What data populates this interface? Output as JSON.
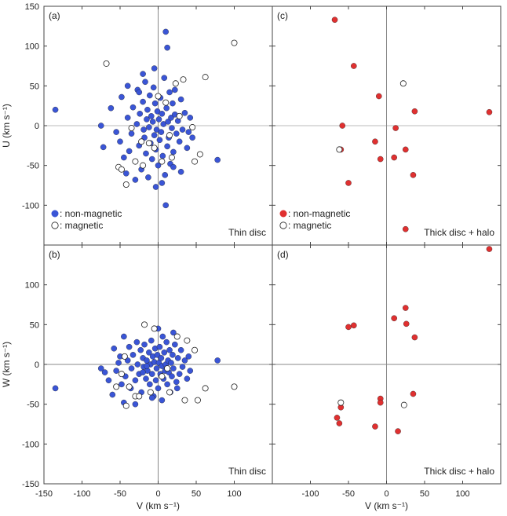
{
  "colors": {
    "non_magnetic_thin": "#3a55d6",
    "non_magnetic_thick": "#e03030",
    "magnetic_fill": "#ffffff",
    "marker_edge": "#222222",
    "zero_line": "#bbbbbb",
    "frame": "#444444"
  },
  "chart_data": [
    {
      "type": "scatter",
      "panel": "a",
      "panel_label": "(a)",
      "caption": "Thin disc",
      "xlabel": "",
      "ylabel": "U (km s⁻¹)",
      "xlim": [
        -150,
        150
      ],
      "ylim": [
        -150,
        150
      ],
      "x_ticks": [],
      "y_ticks": [
        "150",
        "100",
        "50",
        "0",
        "-50",
        "-100"
      ],
      "legend": {
        "position": "bottom-left",
        "entries": [
          ": non-magnetic",
          ": magnetic"
        ]
      },
      "series": [
        {
          "name": "non-magnetic",
          "marker": "filled",
          "color": "#3a55d6",
          "points": [
            [
              -135,
              20
            ],
            [
              -75,
              0
            ],
            [
              -72,
              -27
            ],
            [
              -62,
              22
            ],
            [
              -55,
              -8
            ],
            [
              -50,
              -20
            ],
            [
              -48,
              36
            ],
            [
              -45,
              -40
            ],
            [
              -42,
              -60
            ],
            [
              -40,
              10
            ],
            [
              -38,
              -32
            ],
            [
              -35,
              -10
            ],
            [
              -33,
              23
            ],
            [
              -30,
              -45
            ],
            [
              -28,
              2
            ],
            [
              -27,
              45
            ],
            [
              -25,
              -25
            ],
            [
              -24,
              15
            ],
            [
              -22,
              -55
            ],
            [
              -20,
              30
            ],
            [
              -19,
              -5
            ],
            [
              -18,
              -15
            ],
            [
              -17,
              55
            ],
            [
              -16,
              -35
            ],
            [
              -15,
              8
            ],
            [
              -14,
              20
            ],
            [
              -13,
              -65
            ],
            [
              -12,
              -2
            ],
            [
              -11,
              38
            ],
            [
              -10,
              -22
            ],
            [
              -9,
              12
            ],
            [
              -8,
              -42
            ],
            [
              -7,
              5
            ],
            [
              -6,
              48
            ],
            [
              -5,
              -12
            ],
            [
              -4,
              28
            ],
            [
              -3,
              -30
            ],
            [
              -2,
              -5
            ],
            [
              -1,
              18
            ],
            [
              0,
              -50
            ],
            [
              1,
              8
            ],
            [
              2,
              -18
            ],
            [
              3,
              35
            ],
            [
              4,
              -8
            ],
            [
              5,
              15
            ],
            [
              6,
              -38
            ],
            [
              7,
              2
            ],
            [
              8,
              60
            ],
            [
              9,
              -62
            ],
            [
              10,
              -100
            ],
            [
              10,
              118
            ],
            [
              11,
              22
            ],
            [
              12,
              -26
            ],
            [
              13,
              5
            ],
            [
              14,
              -15
            ],
            [
              15,
              42
            ],
            [
              16,
              -48
            ],
            [
              17,
              10
            ],
            [
              18,
              -3
            ],
            [
              19,
              28
            ],
            [
              20,
              -33
            ],
            [
              22,
              14
            ],
            [
              24,
              -10
            ],
            [
              26,
              6
            ],
            [
              28,
              -20
            ],
            [
              30,
              33
            ],
            [
              32,
              -5
            ],
            [
              35,
              16
            ],
            [
              38,
              -28
            ],
            [
              40,
              -8
            ],
            [
              42,
              10
            ],
            [
              45,
              -15
            ],
            [
              -20,
              65
            ],
            [
              -5,
              72
            ],
            [
              5,
              -72
            ],
            [
              20,
              -52
            ],
            [
              -30,
              -68
            ],
            [
              30,
              -58
            ],
            [
              -40,
              50
            ],
            [
              78,
              -43
            ],
            [
              -3,
              -77
            ],
            [
              12,
              98
            ],
            [
              -25,
              42
            ],
            [
              22,
              45
            ]
          ]
        },
        {
          "name": "magnetic",
          "marker": "open",
          "color": "#ffffff",
          "points": [
            [
              -68,
              78
            ],
            [
              -52,
              -52
            ],
            [
              -48,
              -55
            ],
            [
              -42,
              -74
            ],
            [
              -35,
              -3
            ],
            [
              -30,
              -45
            ],
            [
              -20,
              -50
            ],
            [
              -12,
              -22
            ],
            [
              -5,
              -28
            ],
            [
              0,
              37
            ],
            [
              5,
              -45
            ],
            [
              10,
              29
            ],
            [
              18,
              -40
            ],
            [
              23,
              53
            ],
            [
              28,
              12
            ],
            [
              33,
              58
            ],
            [
              45,
              -2
            ],
            [
              48,
              -45
            ],
            [
              55,
              -36
            ],
            [
              62,
              61
            ],
            [
              100,
              104
            ],
            [
              -22,
              -20
            ],
            [
              15,
              -12
            ]
          ]
        }
      ]
    },
    {
      "type": "scatter",
      "panel": "c",
      "panel_label": "(c)",
      "caption": "Thick disc + halo",
      "xlabel": "",
      "ylabel": "",
      "xlim": [
        -150,
        150
      ],
      "ylim": [
        -150,
        150
      ],
      "x_ticks": [],
      "y_ticks": [],
      "legend": {
        "position": "bottom-left",
        "entries": [
          ": non-magnetic",
          ": magnetic"
        ]
      },
      "series": [
        {
          "name": "non-magnetic",
          "marker": "filled",
          "color": "#e03030",
          "points": [
            [
              -68,
              133
            ],
            [
              -43,
              75
            ],
            [
              -58,
              0
            ],
            [
              -60,
              -30
            ],
            [
              -50,
              -72
            ],
            [
              -10,
              37
            ],
            [
              -15,
              -20
            ],
            [
              -8,
              -42
            ],
            [
              12,
              -3
            ],
            [
              10,
              -40
            ],
            [
              25,
              -30
            ],
            [
              25,
              -130
            ],
            [
              37,
              18
            ],
            [
              35,
              -62
            ],
            [
              135,
              17
            ]
          ]
        },
        {
          "name": "magnetic",
          "marker": "open",
          "color": "#ffffff",
          "points": [
            [
              22,
              53
            ],
            [
              -62,
              -30
            ]
          ]
        }
      ]
    },
    {
      "type": "scatter",
      "panel": "b",
      "panel_label": "(b)",
      "caption": "Thin disc",
      "xlabel": "V (km s⁻¹)",
      "ylabel": "W (km s⁻¹)",
      "xlim": [
        -150,
        150
      ],
      "ylim": [
        -150,
        150
      ],
      "x_ticks": [
        "-150",
        "-100",
        "-50",
        "0",
        "50",
        "100"
      ],
      "y_ticks": [
        "-150",
        "-100",
        "-50",
        "0",
        "50",
        "100"
      ],
      "series": [
        {
          "name": "non-magnetic",
          "marker": "filled",
          "color": "#3a55d6",
          "points": [
            [
              -135,
              -30
            ],
            [
              -75,
              -5
            ],
            [
              -70,
              -10
            ],
            [
              -65,
              -20
            ],
            [
              -60,
              -38
            ],
            [
              -58,
              20
            ],
            [
              -55,
              -8
            ],
            [
              -52,
              2
            ],
            [
              -50,
              10
            ],
            [
              -48,
              -25
            ],
            [
              -45,
              35
            ],
            [
              -43,
              -15
            ],
            [
              -40,
              5
            ],
            [
              -38,
              22
            ],
            [
              -36,
              -30
            ],
            [
              -35,
              -5
            ],
            [
              -33,
              12
            ],
            [
              -30,
              -20
            ],
            [
              -28,
              28
            ],
            [
              -27,
              0
            ],
            [
              -25,
              -12
            ],
            [
              -23,
              18
            ],
            [
              -22,
              -35
            ],
            [
              -20,
              8
            ],
            [
              -19,
              -3
            ],
            [
              -18,
              25
            ],
            [
              -16,
              -18
            ],
            [
              -15,
              5
            ],
            [
              -14,
              -8
            ],
            [
              -12,
              15
            ],
            [
              -11,
              -25
            ],
            [
              -10,
              0
            ],
            [
              -9,
              30
            ],
            [
              -8,
              -12
            ],
            [
              -7,
              10
            ],
            [
              -6,
              -40
            ],
            [
              -5,
              3
            ],
            [
              -4,
              20
            ],
            [
              -3,
              -20
            ],
            [
              -2,
              -5
            ],
            [
              -1,
              12
            ],
            [
              0,
              -30
            ],
            [
              1,
              2
            ],
            [
              2,
              22
            ],
            [
              3,
              -12
            ],
            [
              4,
              8
            ],
            [
              5,
              -2
            ],
            [
              6,
              35
            ],
            [
              7,
              -18
            ],
            [
              8,
              15
            ],
            [
              9,
              -8
            ],
            [
              10,
              0
            ],
            [
              11,
              28
            ],
            [
              12,
              -25
            ],
            [
              13,
              5
            ],
            [
              14,
              -10
            ],
            [
              15,
              18
            ],
            [
              16,
              -35
            ],
            [
              17,
              2
            ],
            [
              18,
              -15
            ],
            [
              19,
              12
            ],
            [
              20,
              -5
            ],
            [
              22,
              25
            ],
            [
              24,
              -22
            ],
            [
              26,
              8
            ],
            [
              28,
              -12
            ],
            [
              30,
              18
            ],
            [
              32,
              -3
            ],
            [
              35,
              5
            ],
            [
              38,
              -18
            ],
            [
              40,
              10
            ],
            [
              42,
              -8
            ],
            [
              -30,
              -50
            ],
            [
              -45,
              -48
            ],
            [
              5,
              -45
            ],
            [
              20,
              40
            ],
            [
              0,
              45
            ],
            [
              -8,
              -42
            ],
            [
              78,
              5
            ],
            [
              -15,
              -2
            ],
            [
              25,
              -30
            ],
            [
              -20,
              -10
            ]
          ]
        },
        {
          "name": "magnetic",
          "marker": "open",
          "color": "#ffffff",
          "points": [
            [
              -55,
              -28
            ],
            [
              -48,
              -12
            ],
            [
              -44,
              10
            ],
            [
              -42,
              -52
            ],
            [
              -38,
              -28
            ],
            [
              -30,
              -40
            ],
            [
              -18,
              50
            ],
            [
              -10,
              -35
            ],
            [
              -5,
              45
            ],
            [
              5,
              -15
            ],
            [
              12,
              -5
            ],
            [
              25,
              35
            ],
            [
              35,
              -45
            ],
            [
              38,
              30
            ],
            [
              48,
              18
            ],
            [
              52,
              -45
            ],
            [
              62,
              -30
            ],
            [
              100,
              -28
            ],
            [
              -25,
              -40
            ],
            [
              15,
              -35
            ]
          ]
        }
      ]
    },
    {
      "type": "scatter",
      "panel": "d",
      "panel_label": "(d)",
      "caption": "Thick disc + halo",
      "xlabel": "V (km s⁻¹)",
      "ylabel": "",
      "xlim": [
        -150,
        150
      ],
      "ylim": [
        -150,
        150
      ],
      "x_ticks": [
        "-100",
        "-50",
        "0",
        "50",
        "100"
      ],
      "y_ticks": [],
      "series": [
        {
          "name": "non-magnetic",
          "marker": "filled",
          "color": "#e03030",
          "points": [
            [
              135,
              145
            ],
            [
              -50,
              47
            ],
            [
              -43,
              49
            ],
            [
              25,
              71
            ],
            [
              10,
              58
            ],
            [
              26,
              51
            ],
            [
              37,
              34
            ],
            [
              -8,
              -43
            ],
            [
              -8,
              -48
            ],
            [
              -15,
              -78
            ],
            [
              -60,
              -54
            ],
            [
              -65,
              -67
            ],
            [
              -62,
              -74
            ],
            [
              15,
              -84
            ],
            [
              35,
              -37
            ]
          ]
        },
        {
          "name": "magnetic",
          "marker": "open",
          "color": "#ffffff",
          "points": [
            [
              -60,
              -48
            ],
            [
              23,
              -51
            ]
          ]
        }
      ]
    }
  ]
}
